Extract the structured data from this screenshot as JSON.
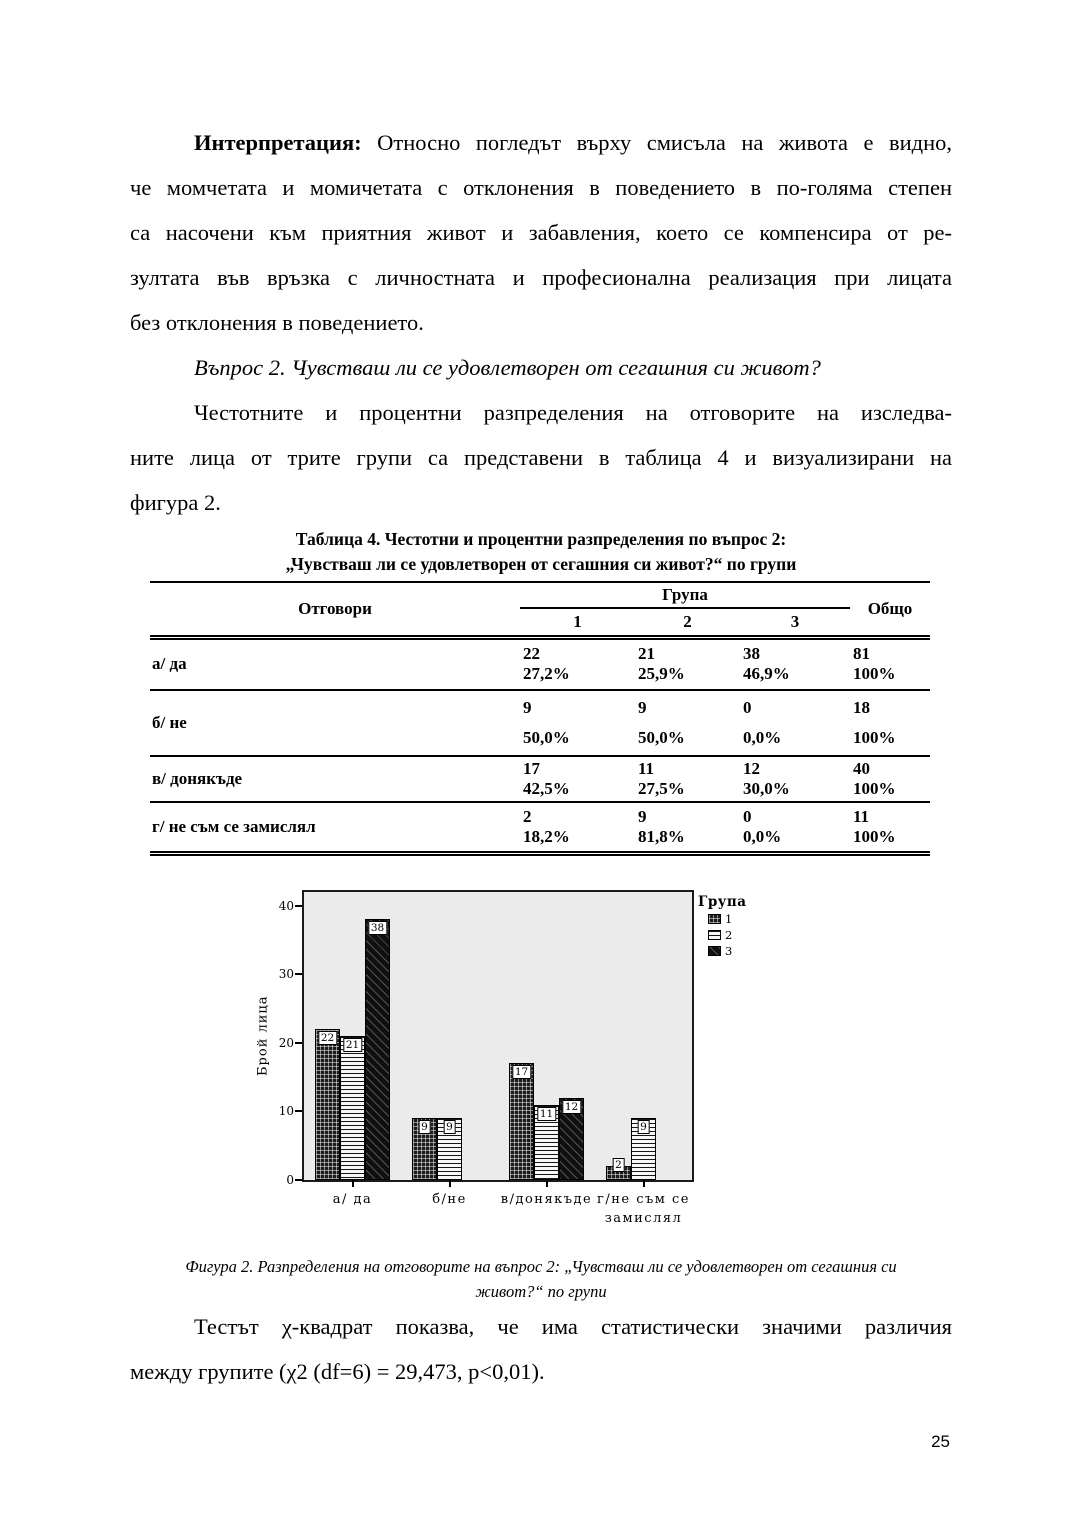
{
  "page": {
    "number": "25"
  },
  "colors": {
    "text": "#000000",
    "plot_background": "#ebebeb",
    "pattern_dark": "#1c1c1c"
  },
  "paragraphs": {
    "interpretation": {
      "lead": "Интерпретация:",
      "line1_rest": " Относно погледът върху смисъла на живота е видно,",
      "lines": [
        "че момчетата и момичетата с отклонения в поведението в по-голяма степен",
        "са насочени към приятния живот и забавления, което се компенсира от ре-",
        "зултата във връзка с личностната и професионална реализация при лицата",
        "без отклонения в поведението."
      ]
    },
    "question": "Въпрос 2. Чувстваш ли се удовлетворен от сегашния си живот?",
    "frequencies": {
      "lines": [
        "Честотните и процентни разпределения на отговорите на изследва-",
        "ните лица от трите групи са представени в таблица 4 и визуализирани на",
        "фигура 2."
      ]
    },
    "chi": {
      "lines": [
        "Тестът χ-квадрат показва, че има статистически значими различия",
        "между групите (χ2 (df=6) = 29,473, p<0,01)."
      ]
    }
  },
  "table": {
    "title_line1": "Таблица 4. Честотни и процентни разпределения по въпрос 2:",
    "title_line2": "„Чувстваш ли се удовлетворен от сегашния си живот?“ по групи",
    "header": {
      "answers": "Отговори",
      "group": "Група",
      "group_cols": [
        "1",
        "2",
        "3"
      ],
      "total": "Общо"
    },
    "rows": [
      {
        "label": "а/ да",
        "cells": [
          [
            "22",
            "27,2%"
          ],
          [
            "21",
            "25,9%"
          ],
          [
            "38",
            "46,9%"
          ],
          [
            "81",
            "100%"
          ]
        ]
      },
      {
        "label": "б/ не",
        "cells": [
          [
            "9",
            "50,0%"
          ],
          [
            "9",
            "50,0%"
          ],
          [
            "0",
            "0,0%"
          ],
          [
            "18",
            "100%"
          ]
        ]
      },
      {
        "label": "в/ донякъде",
        "cells": [
          [
            "17",
            "42,5%"
          ],
          [
            "11",
            "27,5%"
          ],
          [
            "12",
            "30,0%"
          ],
          [
            "40",
            "100%"
          ]
        ]
      },
      {
        "label": "г/ не съм се замислял",
        "cells": [
          [
            "2",
            "18,2%"
          ],
          [
            "9",
            "81,8%"
          ],
          [
            "0",
            "0,0%"
          ],
          [
            "11",
            "100%"
          ]
        ]
      }
    ]
  },
  "figure": {
    "caption_line1": "Фигура 2. Разпределения на отговорите на въпрос 2: „Чувстваш ли се удовлетворен от сегашния си",
    "caption_line2": "живот?“ по групи"
  },
  "chart_data": {
    "type": "bar",
    "title": "",
    "categories": [
      "а/ да",
      "б/не",
      "в/донякъде",
      "г/не съм се\nзамислял"
    ],
    "series": [
      {
        "name": "1",
        "values": [
          22,
          9,
          17,
          2
        ]
      },
      {
        "name": "2",
        "values": [
          21,
          9,
          11,
          9
        ]
      },
      {
        "name": "3",
        "values": [
          38,
          0,
          12,
          0
        ]
      }
    ],
    "xlabel": "",
    "ylabel": "Брой лица",
    "legend_title": "Група",
    "legend_position": "top-right-outside",
    "yticks": [
      0,
      10,
      20,
      30,
      40
    ],
    "ylim": [
      0,
      42
    ],
    "grid": false,
    "bar_labels": true
  }
}
